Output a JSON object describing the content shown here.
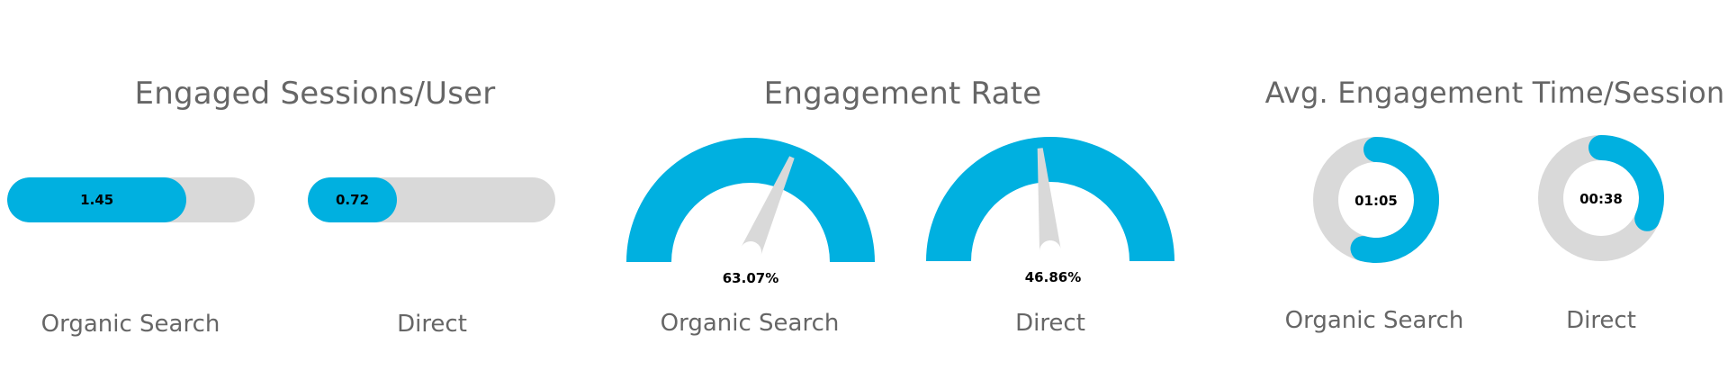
{
  "colors": {
    "accent": "#00B0E0",
    "track": "#D9D9D9",
    "title": "#666666",
    "value": "#000000"
  },
  "sections": [
    {
      "title": "Engaged Sessions/User",
      "type": "progress-bar",
      "max": 2,
      "items": [
        {
          "label": "Organic Search",
          "value": 1.45,
          "display": "1.45"
        },
        {
          "label": "Direct",
          "value": 0.72,
          "display": "0.72"
        }
      ]
    },
    {
      "title": "Engagement Rate",
      "type": "gauge",
      "max": 100,
      "items": [
        {
          "label": "Organic Search",
          "value": 63.07,
          "display": "63.07%"
        },
        {
          "label": "Direct",
          "value": 46.86,
          "display": "46.86%"
        }
      ]
    },
    {
      "title": "Avg. Engagement Time/Session",
      "type": "donut",
      "max_seconds": 120,
      "items": [
        {
          "label": "Organic Search",
          "value_seconds": 65,
          "display": "01:05"
        },
        {
          "label": "Direct",
          "value_seconds": 38,
          "display": "00:38"
        }
      ]
    }
  ],
  "chart_data": [
    {
      "type": "bar",
      "title": "Engaged Sessions/User",
      "categories": [
        "Organic Search",
        "Direct"
      ],
      "values": [
        1.45,
        0.72
      ],
      "ylim": [
        0,
        2
      ]
    },
    {
      "type": "gauge",
      "title": "Engagement Rate",
      "categories": [
        "Organic Search",
        "Direct"
      ],
      "values": [
        63.07,
        46.86
      ],
      "unit": "%",
      "ylim": [
        0,
        100
      ]
    },
    {
      "type": "pie",
      "title": "Avg. Engagement Time/Session",
      "categories": [
        "Organic Search",
        "Direct"
      ],
      "values": [
        "01:05",
        "00:38"
      ],
      "values_seconds": [
        65,
        38
      ]
    }
  ]
}
